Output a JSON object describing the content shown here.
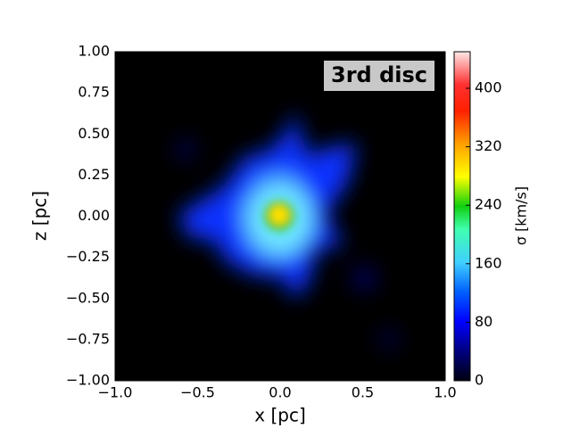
{
  "chart_data": {
    "type": "heatmap",
    "annotation": "3rd disc",
    "xlabel": "x [pc]",
    "ylabel": "z [pc]",
    "colorbar_label": "σ [km/s]",
    "xlim": [
      -1,
      1
    ],
    "xticks": [
      {
        "value": -1,
        "label": "−1.0"
      },
      {
        "value": -0.5,
        "label": "−0.5"
      },
      {
        "value": 0,
        "label": "0.0"
      },
      0.5,
      {
        "value": 1,
        "label": "1.0"
      }
    ],
    "ylim": [
      -1,
      1
    ],
    "yticks": [
      {
        "value": -1,
        "label": "−1.00"
      },
      {
        "value": -0.75,
        "label": "−0.75"
      },
      {
        "value": -0.5,
        "label": "−0.50"
      },
      {
        "value": -0.25,
        "label": "−0.25"
      },
      {
        "value": 0,
        "label": "0.00"
      },
      0.25,
      {
        "value": 0.5,
        "label": "0.50"
      },
      0.75,
      {
        "value": 1,
        "label": "1.00"
      }
    ],
    "clim": [
      0,
      450
    ],
    "cticks": [
      0,
      80,
      160,
      240,
      320,
      400
    ]
  }
}
